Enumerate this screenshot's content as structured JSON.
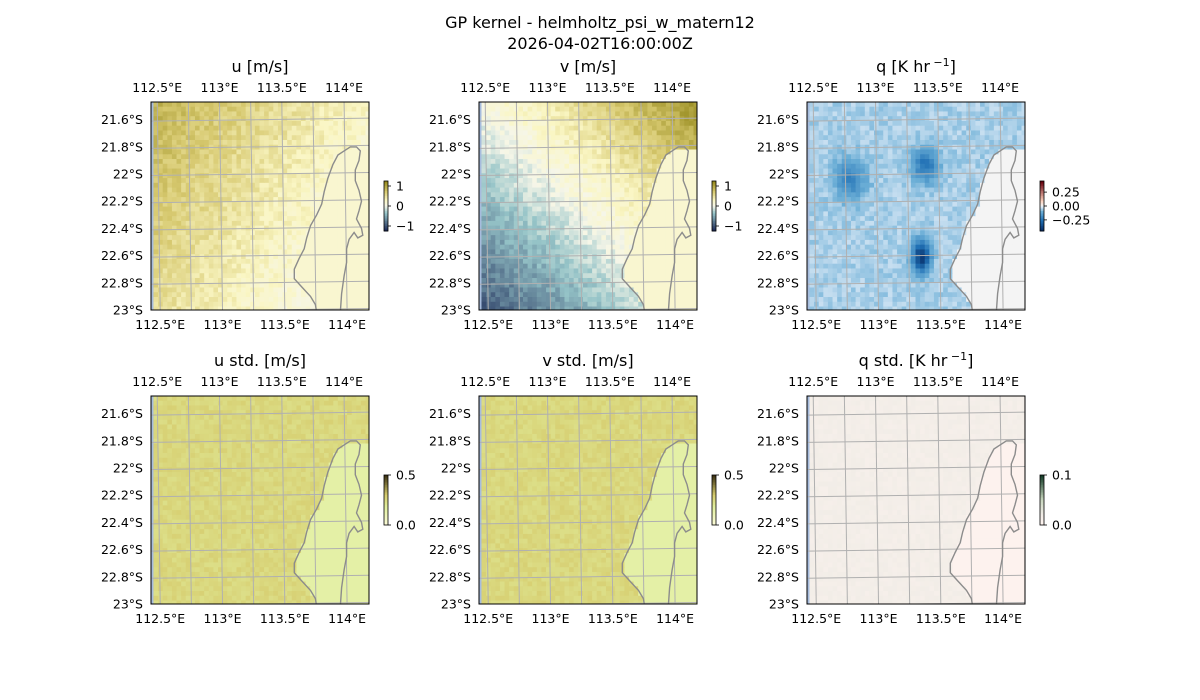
{
  "figure": {
    "title_line1": "GP kernel - helmholtz_psi_w_matern12",
    "title_line2": "2026-04-02T16:00:00Z"
  },
  "colors": {
    "ocean": "#a7bcdd",
    "land_edge": "#8c8c8c",
    "grid": "#b0b0b0",
    "frame": "#000000"
  },
  "chart_data": [
    {
      "type": "heatmap",
      "title": "u [m/s]",
      "title_sup": "",
      "title_post": "",
      "variable": "u",
      "xticks": [
        "112.5°E",
        "113°E",
        "113.5°E",
        "114°E"
      ],
      "xtick_values": [
        112.5,
        113.0,
        113.5,
        114.0
      ],
      "yticks": [
        "21.6°S",
        "21.8°S",
        "22°S",
        "22.2°S",
        "22.4°S",
        "22.6°S",
        "22.8°S",
        "23°S"
      ],
      "ytick_values": [
        -21.6,
        -21.8,
        -22.0,
        -22.2,
        -22.4,
        -22.6,
        -22.8,
        -23.0
      ],
      "xlim": [
        112.45,
        114.2
      ],
      "ylim": [
        -23.0,
        -21.47
      ],
      "colorbar": {
        "ticks": [
          "1",
          "0",
          "−1"
        ],
        "tick_values": [
          1,
          0,
          -1
        ],
        "range": [
          -1.25,
          1.25
        ]
      }
    },
    {
      "type": "heatmap",
      "title": "v [m/s]",
      "title_sup": "",
      "title_post": "",
      "variable": "v",
      "xticks": [
        "112.5°E",
        "113°E",
        "113.5°E",
        "114°E"
      ],
      "xtick_values": [
        112.5,
        113.0,
        113.5,
        114.0
      ],
      "yticks": [
        "21.6°S",
        "21.8°S",
        "22°S",
        "22.2°S",
        "22.4°S",
        "22.6°S",
        "22.8°S",
        "23°S"
      ],
      "ytick_values": [
        -21.6,
        -21.8,
        -22.0,
        -22.2,
        -22.4,
        -22.6,
        -22.8,
        -23.0
      ],
      "xlim": [
        112.45,
        114.2
      ],
      "ylim": [
        -23.0,
        -21.47
      ],
      "colorbar": {
        "ticks": [
          "1",
          "0",
          "−1"
        ],
        "tick_values": [
          1,
          0,
          -1
        ],
        "range": [
          -1.25,
          1.25
        ]
      }
    },
    {
      "type": "heatmap",
      "title": "q [K hr",
      "title_sup": "−1",
      "title_post": "]",
      "variable": "q",
      "xticks": [
        "112.5°E",
        "113°E",
        "113.5°E",
        "114°E"
      ],
      "xtick_values": [
        112.5,
        113.0,
        113.5,
        114.0
      ],
      "yticks": [
        "21.6°S",
        "21.8°S",
        "22°S",
        "22.2°S",
        "22.4°S",
        "22.6°S",
        "22.8°S",
        "23°S"
      ],
      "ytick_values": [
        -21.6,
        -21.8,
        -22.0,
        -22.2,
        -22.4,
        -22.6,
        -22.8,
        -23.0
      ],
      "xlim": [
        112.45,
        114.2
      ],
      "ylim": [
        -23.0,
        -21.47
      ],
      "colorbar": {
        "ticks": [
          "0.25",
          "0.00",
          "−0.25"
        ],
        "tick_values": [
          0.25,
          0.0,
          -0.25
        ],
        "range": [
          -0.45,
          0.45
        ]
      }
    },
    {
      "type": "heatmap",
      "title": "u std. [m/s]",
      "title_sup": "",
      "title_post": "",
      "variable": "ustd",
      "xticks": [
        "112.5°E",
        "113°E",
        "113.5°E",
        "114°E"
      ],
      "xtick_values": [
        112.5,
        113.0,
        113.5,
        114.0
      ],
      "yticks": [
        "21.6°S",
        "21.8°S",
        "22°S",
        "22.2°S",
        "22.4°S",
        "22.6°S",
        "22.8°S",
        "23°S"
      ],
      "ytick_values": [
        -21.6,
        -21.8,
        -22.0,
        -22.2,
        -22.4,
        -22.6,
        -22.8,
        -23.0
      ],
      "xlim": [
        112.45,
        114.2
      ],
      "ylim": [
        -23.0,
        -21.47
      ],
      "colorbar": {
        "ticks": [
          "0.5",
          "0.0"
        ],
        "tick_values": [
          0.5,
          0.0
        ],
        "range": [
          0.0,
          0.5
        ]
      }
    },
    {
      "type": "heatmap",
      "title": "v std. [m/s]",
      "title_sup": "",
      "title_post": "",
      "variable": "vstd",
      "xticks": [
        "112.5°E",
        "113°E",
        "113.5°E",
        "114°E"
      ],
      "xtick_values": [
        112.5,
        113.0,
        113.5,
        114.0
      ],
      "yticks": [
        "21.6°S",
        "21.8°S",
        "22°S",
        "22.2°S",
        "22.4°S",
        "22.6°S",
        "22.8°S",
        "23°S"
      ],
      "ytick_values": [
        -21.6,
        -21.8,
        -22.0,
        -22.2,
        -22.4,
        -22.6,
        -22.8,
        -23.0
      ],
      "xlim": [
        112.45,
        114.2
      ],
      "ylim": [
        -23.0,
        -21.47
      ],
      "colorbar": {
        "ticks": [
          "0.5",
          "0.0"
        ],
        "tick_values": [
          0.5,
          0.0
        ],
        "range": [
          0.0,
          0.5
        ]
      }
    },
    {
      "type": "heatmap",
      "title": "q std. [K hr",
      "title_sup": "−1",
      "title_post": "]",
      "variable": "qstd",
      "xticks": [
        "112.5°E",
        "113°E",
        "113.5°E",
        "114°E"
      ],
      "xtick_values": [
        112.5,
        113.0,
        113.5,
        114.0
      ],
      "yticks": [
        "21.6°S",
        "21.8°S",
        "22°S",
        "22.2°S",
        "22.4°S",
        "22.6°S",
        "22.8°S",
        "23°S"
      ],
      "ytick_values": [
        -21.6,
        -21.8,
        -22.0,
        -22.2,
        -22.4,
        -22.6,
        -22.8,
        -23.0
      ],
      "xlim": [
        112.45,
        114.2
      ],
      "ylim": [
        -23.0,
        -21.47
      ],
      "colorbar": {
        "ticks": [
          "0.1",
          "0.0"
        ],
        "tick_values": [
          0.1,
          0.0
        ],
        "range": [
          0.0,
          0.1
        ]
      }
    }
  ]
}
